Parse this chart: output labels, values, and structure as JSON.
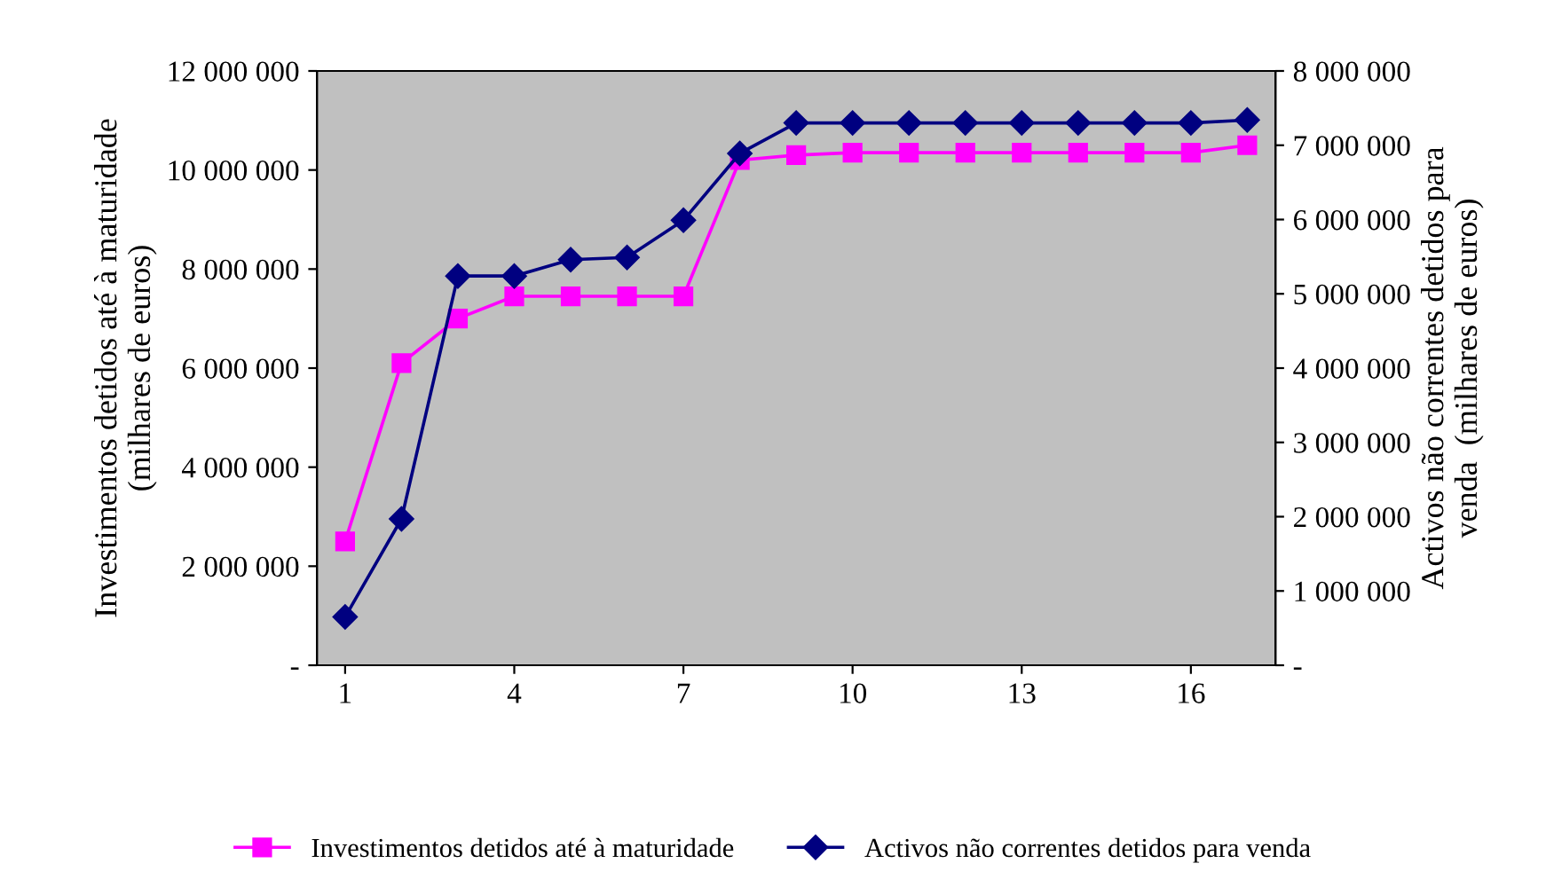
{
  "chart_data": {
    "type": "line",
    "categories": [
      "1",
      null,
      null,
      "4",
      null,
      null,
      "7",
      null,
      null,
      "10",
      null,
      null,
      "13",
      null,
      null,
      "16",
      null
    ],
    "ylabel": "Investimentos detidos até à maturidade\n(milhares de euros)",
    "y2label": "Activos não correntes detidos para\nvenda  (milhares de euros)",
    "ylim": [
      0,
      12000000
    ],
    "yticks": [
      {
        "value": 0,
        "label": "-"
      },
      {
        "value": 2000000,
        "label": "2 000 000"
      },
      {
        "value": 4000000,
        "label": "4 000 000"
      },
      {
        "value": 6000000,
        "label": "6 000 000"
      },
      {
        "value": 8000000,
        "label": "8 000 000"
      },
      {
        "value": 10000000,
        "label": "10 000 000"
      },
      {
        "value": 12000000,
        "label": "12 000 000"
      }
    ],
    "y2lim": [
      0,
      8000000
    ],
    "y2ticks": [
      {
        "value": 0,
        "label": "-"
      },
      {
        "value": 1000000,
        "label": "1 000 000"
      },
      {
        "value": 2000000,
        "label": "2 000 000"
      },
      {
        "value": 3000000,
        "label": "3 000 000"
      },
      {
        "value": 4000000,
        "label": "4 000 000"
      },
      {
        "value": 5000000,
        "label": "5 000 000"
      },
      {
        "value": 6000000,
        "label": "6 000 000"
      },
      {
        "value": 7000000,
        "label": "7 000 000"
      },
      {
        "value": 8000000,
        "label": "8 000 000"
      }
    ],
    "grid": false,
    "legend": "bottom",
    "series": [
      {
        "name": "Investimentos detidos até à maturidade",
        "color": "#ff00ff",
        "marker": "square",
        "values": [
          2500000,
          6100000,
          7000000,
          7450000,
          7450000,
          7450000,
          7450000,
          10200000,
          10300000,
          10350000,
          10350000,
          10350000,
          10350000,
          10350000,
          10350000,
          10350000,
          10500000
        ]
      },
      {
        "name": "Activos não correntes detidos para venda",
        "color": "#000080",
        "marker": "diamond",
        "axis": "y2",
        "values": [
          650000,
          1970000,
          5240000,
          5240000,
          5460000,
          5490000,
          5990000,
          6890000,
          7300000,
          7300000,
          7300000,
          7300000,
          7300000,
          7300000,
          7300000,
          7300000,
          7340000
        ]
      }
    ]
  }
}
